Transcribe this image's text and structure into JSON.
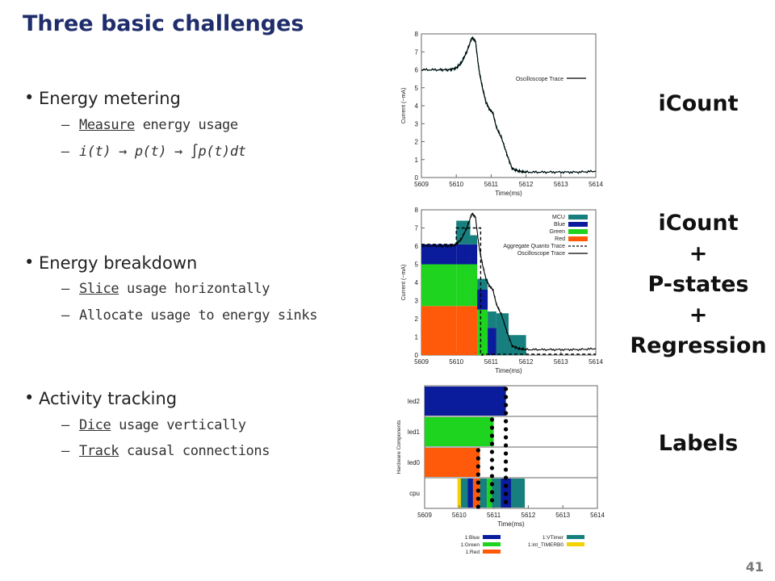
{
  "slide": {
    "title": "Three basic challenges",
    "page_number": "41",
    "sections": [
      {
        "heading": "Energy metering",
        "items": [
          {
            "u": "Measure",
            "rest": " energy usage"
          }
        ],
        "formula": "i(t) → p(t) → ∫p(t)dt"
      },
      {
        "heading": "Energy breakdown",
        "items": [
          {
            "u": "Slice",
            "rest": " usage horizontally"
          },
          {
            "u": "",
            "rest": "Allocate usage to energy sinks"
          }
        ]
      },
      {
        "heading": "Activity tracking",
        "items": [
          {
            "u": "Dice",
            "rest": " usage vertically"
          },
          {
            "u": "Track",
            "rest": " causal connections"
          }
        ]
      }
    ],
    "right_labels": {
      "icount": "iCount",
      "p2_lines": [
        "iCount",
        "+",
        "P-states",
        "+",
        "Regression"
      ],
      "labels": "Labels"
    }
  },
  "colors": {
    "mcu": "#17807e",
    "blue": "#0a1b9c",
    "green": "#1fd41f",
    "red": "#ff5a0a",
    "yellow": "#f2d200",
    "trace": "#000000",
    "bg": "#ffffff"
  },
  "chart_data": [
    {
      "type": "line",
      "xlabel": "Time(ms)",
      "ylabel": "Current (~mA)",
      "xlim": [
        5609,
        5614
      ],
      "ylim": [
        0,
        8
      ],
      "x_ticks": [
        5609,
        5610,
        5611,
        5612,
        5613,
        5614
      ],
      "y_ticks": [
        0,
        1,
        2,
        3,
        4,
        5,
        6,
        7,
        8
      ],
      "legend_position": "top-right",
      "series": [
        {
          "name": "Oscilloscope Trace",
          "x": [
            5609,
            5609.5,
            5609.8,
            5610.0,
            5610.15,
            5610.3,
            5610.45,
            5610.55,
            5610.65,
            5610.75,
            5610.85,
            5610.95,
            5611.05,
            5611.15,
            5611.3,
            5611.45,
            5611.6,
            5611.8,
            5612.0,
            5612.5,
            5613.0,
            5613.5,
            5614
          ],
          "y": [
            6.0,
            6.0,
            6.0,
            6.1,
            6.4,
            7.0,
            7.8,
            7.6,
            6.0,
            5.0,
            4.2,
            3.8,
            3.6,
            2.8,
            2.2,
            1.3,
            0.5,
            0.35,
            0.3,
            0.3,
            0.3,
            0.3,
            0.35
          ]
        }
      ]
    },
    {
      "type": "bar",
      "xlabel": "Time(ms)",
      "ylabel": "Current (~mA)",
      "xlim": [
        5609,
        5614
      ],
      "ylim": [
        0,
        8
      ],
      "x_ticks": [
        5609,
        5610,
        5611,
        5612,
        5613,
        5614
      ],
      "y_ticks": [
        0,
        1,
        2,
        3,
        4,
        5,
        6,
        7,
        8
      ],
      "legend_position": "top-right",
      "legend": [
        "MCU",
        "Blue",
        "Green",
        "Red",
        "Aggregate Quanto Trace",
        "Oscilloscope Trace"
      ],
      "stacks": [
        {
          "x0": 5609.0,
          "x1": 5610.0,
          "red": 2.7,
          "green": 2.3,
          "blue": 1.1,
          "mcu": 0.0
        },
        {
          "x0": 5610.0,
          "x1": 5610.4,
          "red": 2.7,
          "green": 2.3,
          "blue": 1.1,
          "mcu": 1.3
        },
        {
          "x0": 5610.4,
          "x1": 5610.6,
          "red": 2.7,
          "green": 2.3,
          "blue": 1.1,
          "mcu": 0.5
        },
        {
          "x0": 5610.6,
          "x1": 5610.9,
          "red": 0.0,
          "green": 2.5,
          "blue": 1.1,
          "mcu": 0.6
        },
        {
          "x0": 5610.9,
          "x1": 5611.15,
          "red": 0.0,
          "green": 0.0,
          "blue": 1.5,
          "mcu": 0.9
        },
        {
          "x0": 5611.15,
          "x1": 5611.5,
          "red": 0.0,
          "green": 0.0,
          "blue": 0.0,
          "mcu": 2.3
        },
        {
          "x0": 5611.5,
          "x1": 5612.0,
          "red": 0.0,
          "green": 0.0,
          "blue": 0.0,
          "mcu": 1.1
        }
      ],
      "aggregate_trace": {
        "x": [
          5609,
          5610.0,
          5610.0,
          5610.7,
          5610.7,
          5610.75,
          5610.75,
          5614
        ],
        "y": [
          6.1,
          6.1,
          7.0,
          7.0,
          0.0,
          0.0,
          0.05,
          0.05
        ]
      },
      "oscilloscope_trace": {
        "x": [
          5609,
          5609.5,
          5609.8,
          5610.0,
          5610.15,
          5610.3,
          5610.45,
          5610.55,
          5610.65,
          5610.75,
          5610.85,
          5610.95,
          5611.05,
          5611.15,
          5611.3,
          5611.45,
          5611.6,
          5611.8,
          5612.0,
          5612.5,
          5613.0,
          5613.5,
          5614
        ],
        "y": [
          6.0,
          6.0,
          6.0,
          6.1,
          6.4,
          7.0,
          7.8,
          7.6,
          6.0,
          5.0,
          4.2,
          3.8,
          3.6,
          2.8,
          2.2,
          1.3,
          0.5,
          0.35,
          0.3,
          0.3,
          0.3,
          0.3,
          0.35
        ]
      }
    },
    {
      "type": "bar",
      "xlabel": "Time(ms)",
      "ylabel": "Hardware Components",
      "xlim": [
        5609,
        5614
      ],
      "x_ticks": [
        5609,
        5610,
        5611,
        5612,
        5613,
        5614
      ],
      "rows": [
        "led2",
        "led1",
        "led0",
        "cpu"
      ],
      "legend": [
        "1:Blue",
        "1:Green",
        "1:Red",
        "1:VTimer",
        "1:int_TIMERB0"
      ],
      "segments": [
        {
          "row": "led2",
          "x0": 5609.0,
          "x1": 5611.35,
          "color": "blue"
        },
        {
          "row": "led1",
          "x0": 5609.0,
          "x1": 5611.0,
          "color": "green"
        },
        {
          "row": "led0",
          "x0": 5609.0,
          "x1": 5610.6,
          "color": "red"
        },
        {
          "row": "cpu",
          "x0": 5609.95,
          "x1": 5610.05,
          "color": "yellow"
        },
        {
          "row": "cpu",
          "x0": 5610.05,
          "x1": 5610.25,
          "color": "mcu"
        },
        {
          "row": "cpu",
          "x0": 5610.25,
          "x1": 5610.4,
          "color": "blue"
        },
        {
          "row": "cpu",
          "x0": 5610.4,
          "x1": 5610.6,
          "color": "red"
        },
        {
          "row": "cpu",
          "x0": 5610.6,
          "x1": 5610.8,
          "color": "mcu"
        },
        {
          "row": "cpu",
          "x0": 5610.8,
          "x1": 5610.95,
          "color": "green"
        },
        {
          "row": "cpu",
          "x0": 5610.95,
          "x1": 5611.2,
          "color": "mcu"
        },
        {
          "row": "cpu",
          "x0": 5611.2,
          "x1": 5611.5,
          "color": "blue"
        },
        {
          "row": "cpu",
          "x0": 5611.5,
          "x1": 5611.9,
          "color": "mcu"
        }
      ],
      "dot_columns": [
        {
          "x": 5610.55,
          "rows_from": "cpu",
          "rows_to": "led0"
        },
        {
          "x": 5610.95,
          "rows_from": "cpu",
          "rows_to": "led1"
        },
        {
          "x": 5611.35,
          "rows_from": "cpu",
          "rows_to": "led2"
        }
      ]
    }
  ]
}
